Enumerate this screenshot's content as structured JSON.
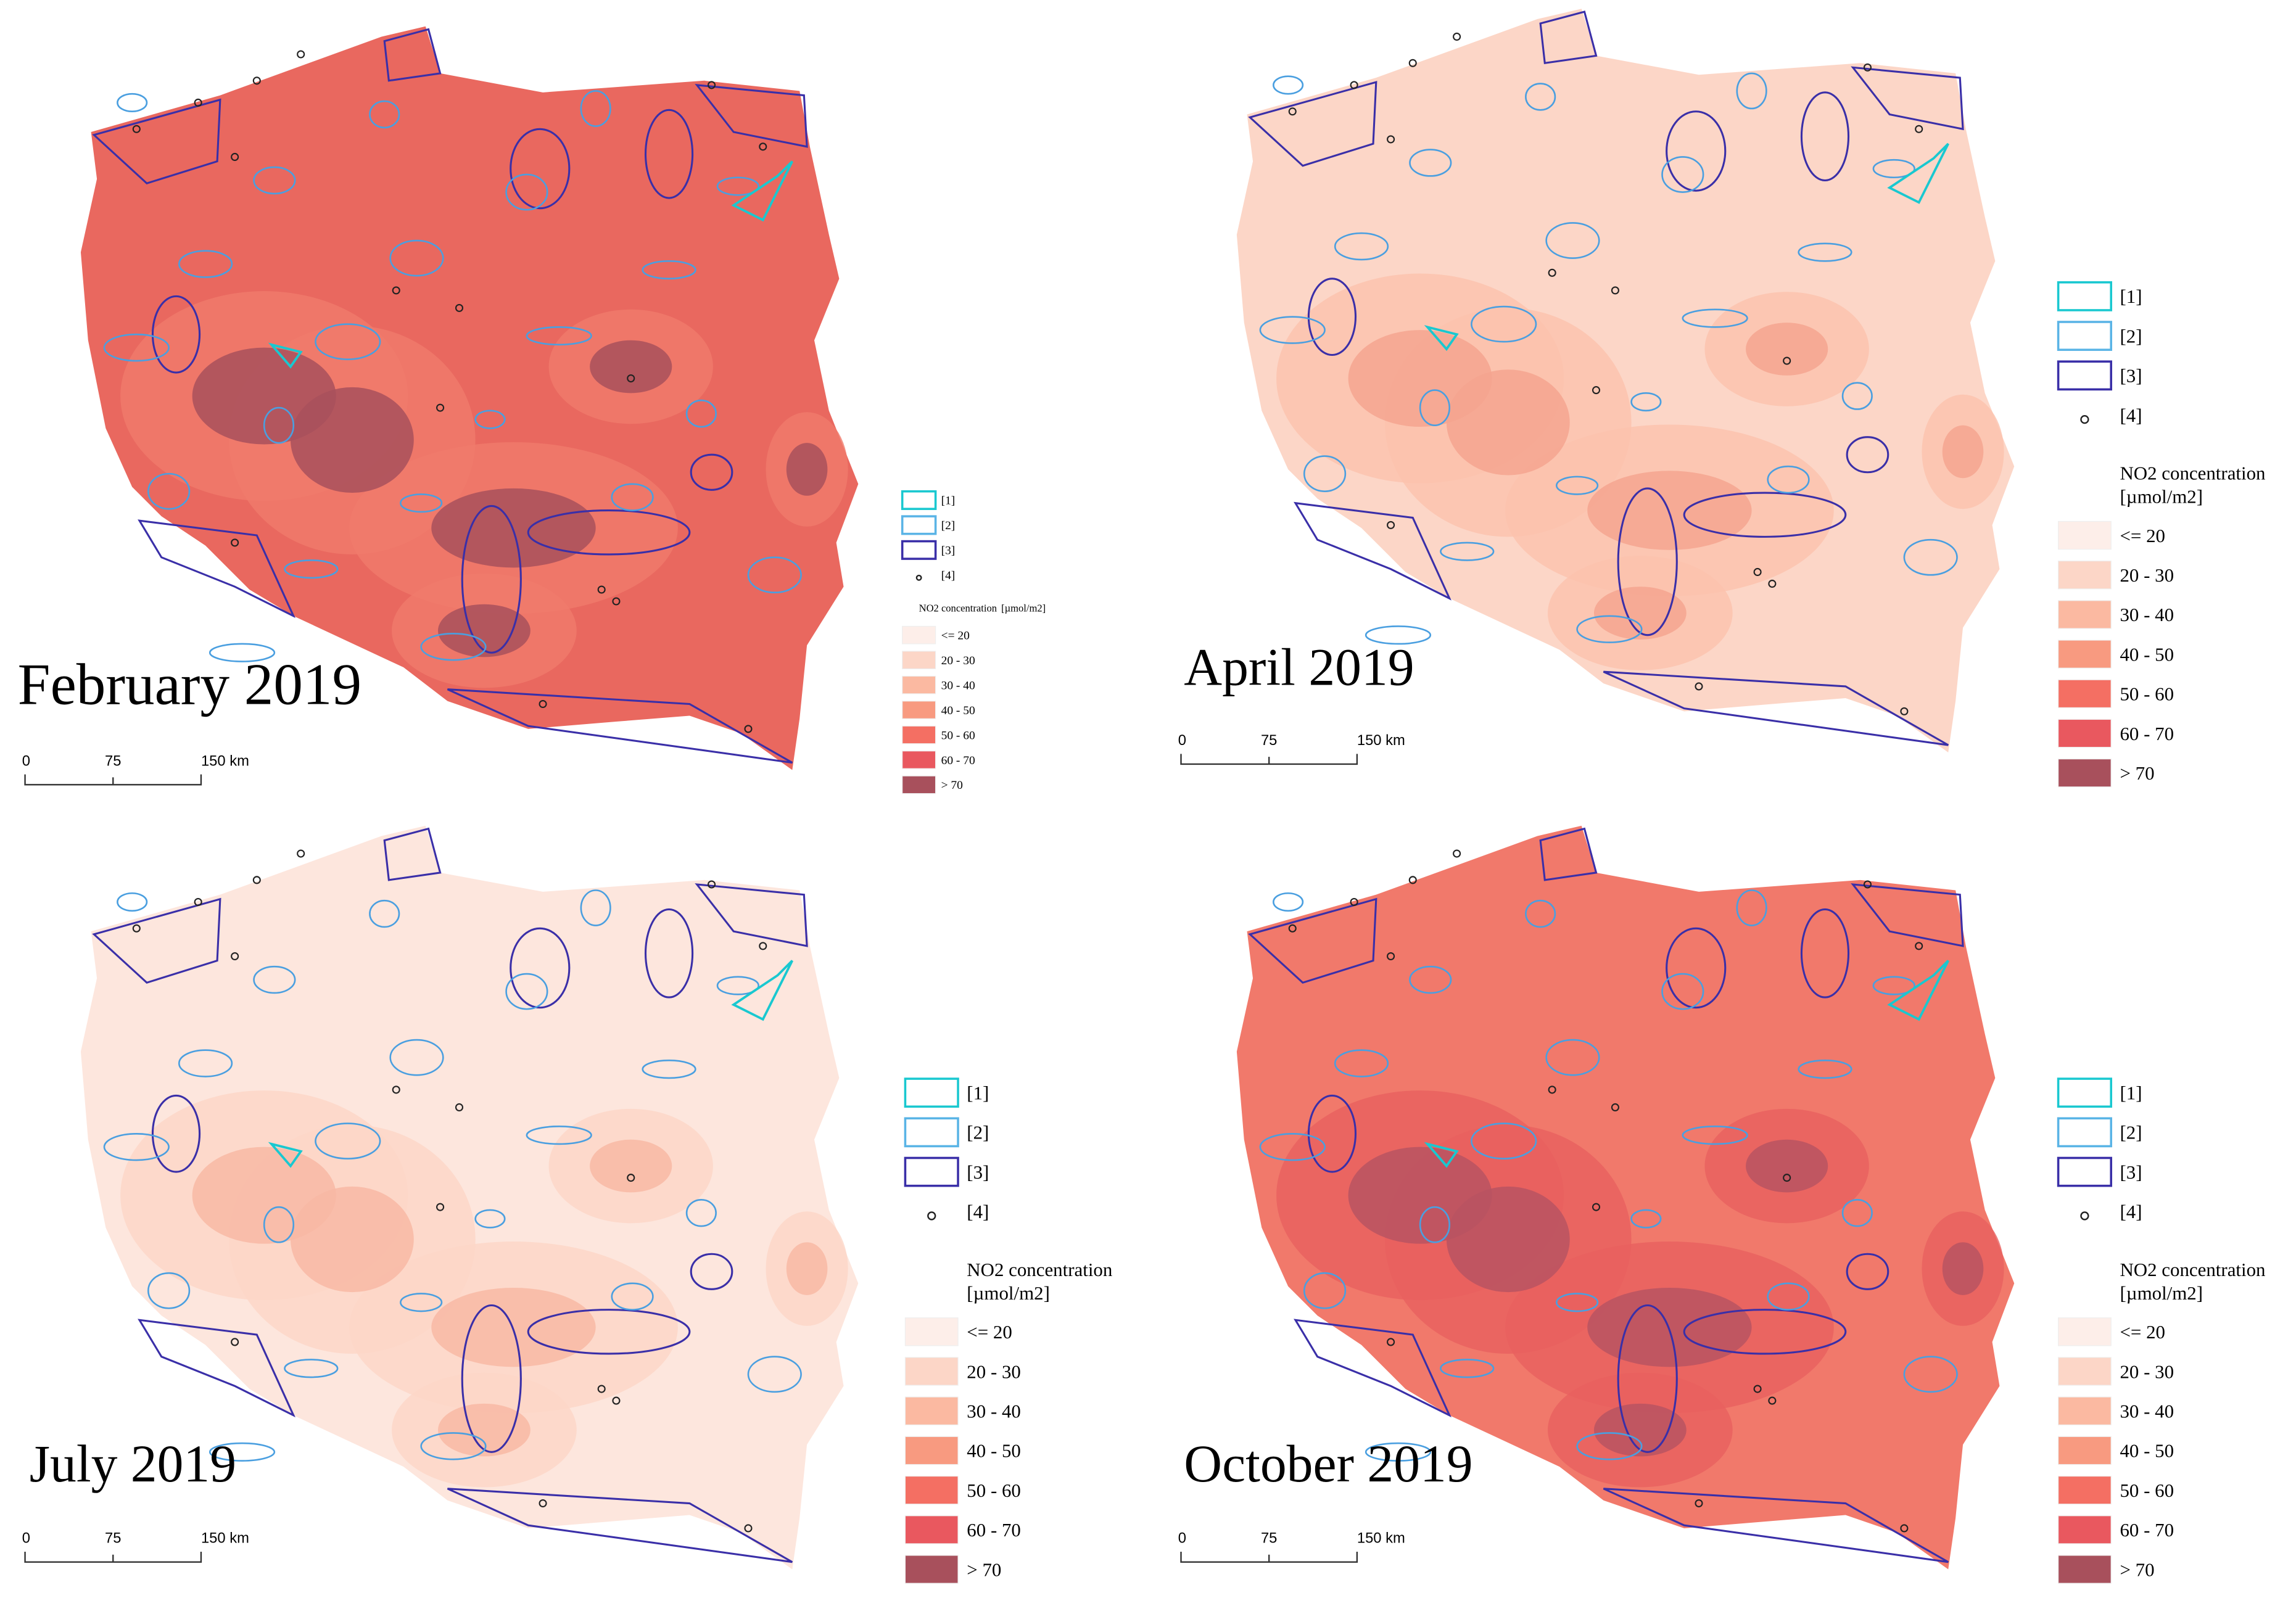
{
  "panels": [
    {
      "title": "February 2019"
    },
    {
      "title": "April 2019"
    },
    {
      "title": "July 2019"
    },
    {
      "title": "October 2019"
    }
  ],
  "scale_bar": [
    "0",
    "75",
    "150 km"
  ],
  "legend": {
    "symbols": [
      "[1]",
      "[2]",
      "[3]",
      "[4]"
    ],
    "title_lines": [
      "NO2 concentration",
      "[µmol/m2]"
    ],
    "classes": [
      "<= 20",
      "20 - 30",
      "30 - 40",
      "40 - 50",
      "50 - 60",
      "60 - 70",
      "> 70"
    ]
  }
}
